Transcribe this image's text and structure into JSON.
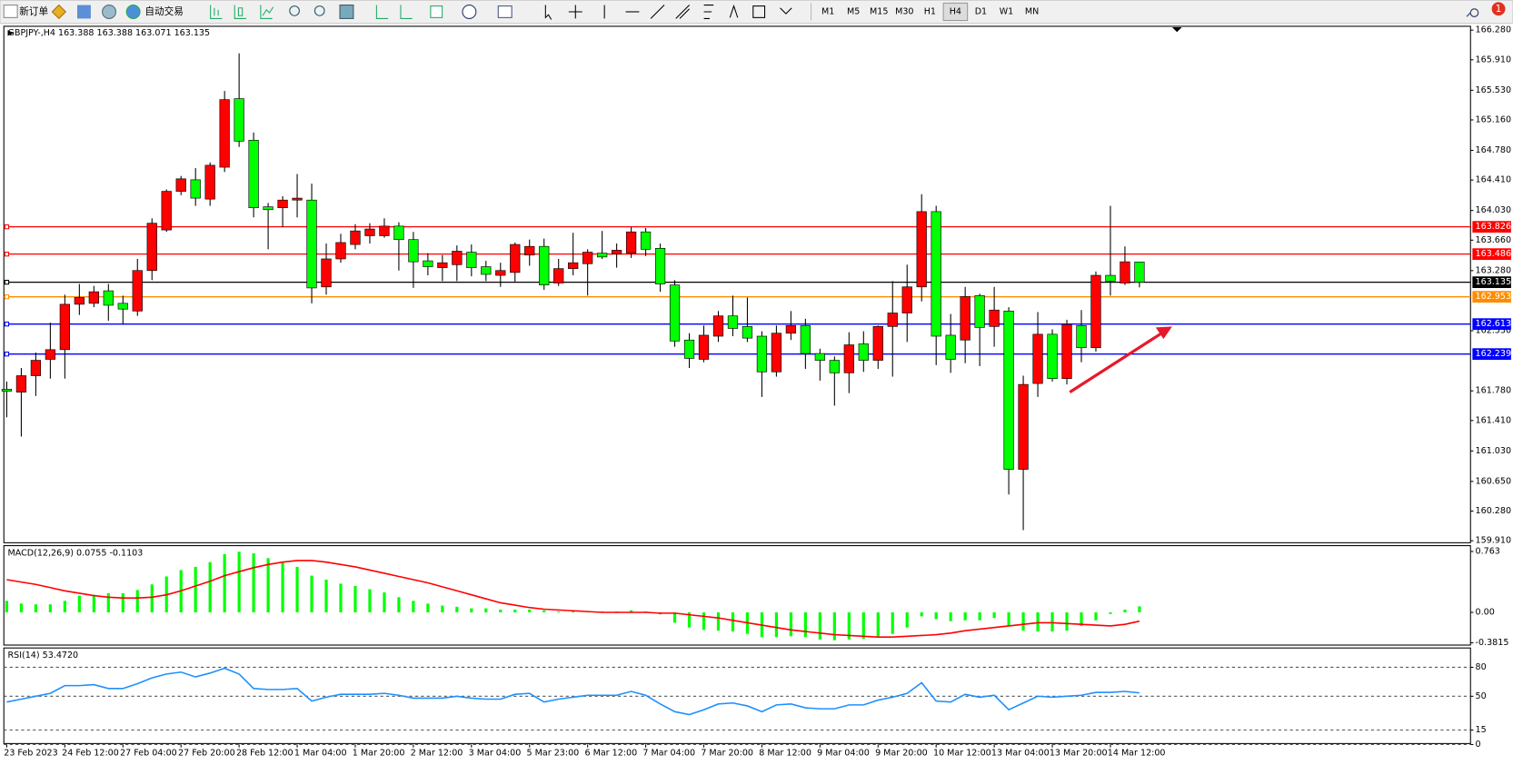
{
  "toolbar": {
    "new_order": "新订单",
    "auto_trading": "自动交易",
    "timeframes": [
      "M1",
      "M5",
      "M15",
      "M30",
      "H1",
      "H4",
      "D1",
      "W1",
      "MN"
    ],
    "active_timeframe": "H4",
    "badge": "1"
  },
  "chart_data": [
    {
      "type": "candlestick",
      "title": "GBPJPY-,H4  163.388 163.388 163.071 163.135",
      "categories": [
        "23 Feb 2023",
        null,
        null,
        null,
        "24 Feb 12:00",
        null,
        null,
        null,
        "27 Feb 04:00",
        null,
        null,
        null,
        "27 Feb 20:00",
        null,
        null,
        null,
        "28 Feb 12:00",
        null,
        null,
        null,
        "1 Mar 04:00",
        null,
        null,
        null,
        "1 Mar 20:00",
        null,
        null,
        null,
        "2 Mar 12:00",
        null,
        null,
        null,
        "3 Mar 04:00",
        null,
        null,
        null,
        "5 Mar 23:00",
        null,
        null,
        null,
        "6 Mar 12:00",
        null,
        null,
        null,
        "7 Mar 04:00",
        null,
        null,
        null,
        "7 Mar 20:00",
        null,
        null,
        null,
        "8 Mar 12:00",
        null,
        null,
        null,
        "9 Mar 04:00",
        null,
        null,
        null,
        "9 Mar 20:00",
        null,
        null,
        null,
        "10 Mar 12:00",
        null,
        null,
        null,
        "13 Mar 04:00",
        null,
        null,
        null,
        "13 Mar 20:00",
        null,
        null,
        null,
        "14 Mar 12:00",
        null,
        null
      ],
      "open": [
        161.8,
        161.764,
        161.969,
        162.173,
        162.294,
        162.86,
        162.872,
        163.028,
        162.872,
        162.776,
        163.281,
        163.787,
        164.269,
        164.413,
        164.172,
        164.57,
        165.425,
        164.907,
        164.076,
        164.064,
        164.16,
        164.16,
        163.077,
        163.426,
        163.606,
        163.715,
        163.715,
        163.835,
        163.667,
        163.402,
        163.317,
        163.354,
        163.51,
        163.329,
        163.221,
        163.257,
        163.474,
        163.582,
        163.125,
        163.305,
        163.366,
        163.498,
        163.486,
        163.498,
        163.763,
        163.558,
        163.101,
        162.414,
        162.173,
        162.462,
        162.715,
        162.583,
        162.462,
        162.017,
        162.499,
        162.595,
        162.246,
        162.161,
        162.005,
        162.366,
        162.161,
        162.583,
        162.751,
        163.077,
        164.016,
        162.474,
        162.414,
        162.968,
        162.583,
        162.776,
        160.801,
        161.872,
        162.486,
        161.933,
        162.595,
        162.318,
        163.221,
        163.125,
        163.388
      ],
      "high": [
        161.896,
        162.065,
        162.258,
        162.631,
        162.98,
        163.113,
        163.089,
        163.113,
        162.968,
        163.426,
        163.932,
        164.293,
        164.461,
        164.558,
        164.63,
        165.521,
        165.991,
        165.003,
        164.124,
        164.209,
        164.485,
        164.365,
        163.618,
        163.739,
        163.859,
        163.871,
        163.932,
        163.883,
        163.763,
        163.498,
        163.474,
        163.594,
        163.606,
        163.402,
        163.378,
        163.63,
        163.667,
        163.679,
        163.426,
        163.751,
        163.546,
        163.775,
        163.618,
        163.823,
        163.811,
        163.618,
        163.161,
        162.499,
        162.595,
        162.776,
        162.968,
        162.944,
        162.523,
        162.595,
        162.776,
        162.679,
        162.306,
        162.21,
        162.511,
        162.523,
        162.595,
        163.149,
        163.354,
        164.233,
        164.088,
        162.739,
        163.077,
        162.992,
        163.077,
        162.824,
        161.969,
        162.763,
        162.547,
        162.667,
        162.788,
        163.269,
        164.088,
        163.582,
        163.388
      ],
      "low": [
        161.451,
        161.21,
        161.716,
        161.933,
        161.933,
        162.727,
        162.824,
        162.655,
        162.607,
        162.715,
        163.161,
        163.763,
        164.221,
        164.088,
        164.088,
        164.51,
        164.823,
        163.944,
        163.546,
        163.823,
        163.944,
        162.872,
        162.98,
        163.378,
        163.546,
        163.618,
        163.691,
        163.281,
        163.064,
        163.221,
        163.149,
        163.149,
        163.209,
        163.149,
        163.077,
        163.137,
        163.341,
        163.04,
        163.089,
        163.221,
        162.968,
        163.426,
        163.317,
        163.438,
        163.462,
        163.016,
        162.33,
        162.065,
        162.137,
        162.39,
        162.462,
        162.39,
        161.704,
        161.957,
        162.414,
        162.053,
        161.908,
        161.595,
        161.752,
        162.017,
        162.053,
        161.957,
        162.39,
        162.896,
        162.101,
        162.005,
        162.125,
        162.089,
        162.33,
        160.487,
        160.042,
        161.704,
        161.896,
        161.86,
        162.137,
        162.27,
        162.968,
        163.101,
        163.071
      ],
      "close": [
        161.776,
        161.969,
        162.161,
        162.294,
        162.86,
        162.944,
        163.016,
        162.848,
        162.8,
        163.281,
        163.871,
        164.269,
        164.425,
        164.184,
        164.594,
        165.413,
        164.895,
        164.064,
        164.04,
        164.16,
        164.184,
        163.064,
        163.426,
        163.63,
        163.775,
        163.799,
        163.835,
        163.667,
        163.39,
        163.329,
        163.378,
        163.522,
        163.317,
        163.233,
        163.281,
        163.606,
        163.582,
        163.101,
        163.305,
        163.378,
        163.51,
        163.45,
        163.534,
        163.763,
        163.546,
        163.113,
        162.402,
        162.185,
        162.474,
        162.715,
        162.559,
        162.438,
        162.017,
        162.499,
        162.595,
        162.246,
        162.161,
        162.005,
        162.354,
        162.161,
        162.583,
        162.751,
        163.077,
        164.016,
        162.462,
        162.173,
        162.956,
        162.571,
        162.788,
        160.801,
        161.86,
        162.486,
        161.933,
        162.607,
        162.318,
        163.221,
        163.149,
        163.39,
        163.135
      ],
      "up_color": "#ff0000",
      "down_color": "#00ff00",
      "ylim": [
        159.885,
        166.328
      ],
      "yticks": [
        {
          "value": 166.28,
          "label": "166.280"
        },
        {
          "value": 165.91,
          "label": "165.910"
        },
        {
          "value": 165.53,
          "label": "165.530"
        },
        {
          "value": 165.16,
          "label": "165.160"
        },
        {
          "value": 164.78,
          "label": "164.780"
        },
        {
          "value": 164.41,
          "label": "164.410"
        },
        {
          "value": 164.03,
          "label": "164.030"
        },
        {
          "value": 163.66,
          "label": "163.660"
        },
        {
          "value": 163.28,
          "label": "163.280"
        },
        {
          "value": 162.53,
          "label": "162.530"
        },
        {
          "value": 161.78,
          "label": "161.780"
        },
        {
          "value": 161.41,
          "label": "161.410"
        },
        {
          "value": 161.03,
          "label": "161.030"
        },
        {
          "value": 160.65,
          "label": "160.650"
        },
        {
          "value": 160.28,
          "label": "160.280"
        },
        {
          "value": 159.91,
          "label": "159.910"
        }
      ],
      "levels": [
        {
          "value": 163.826,
          "color": "#ff0000"
        },
        {
          "value": 163.486,
          "color": "#ff0000"
        },
        {
          "value": 163.135,
          "color": "#000000"
        },
        {
          "value": 162.953,
          "color": "#ff8c00"
        },
        {
          "value": 162.613,
          "color": "#0000ff"
        },
        {
          "value": 162.239,
          "color": "#0000ff"
        }
      ]
    },
    {
      "type": "macd",
      "title": "MACD(12,26,9) 0.0755 -0.1103",
      "series": [
        {
          "style": "bar",
          "color": "#00ff00",
          "values": [
            0.145,
            0.11,
            0.1,
            0.1,
            0.145,
            0.21,
            0.22,
            0.24,
            0.24,
            0.28,
            0.35,
            0.45,
            0.53,
            0.57,
            0.63,
            0.73,
            0.76,
            0.74,
            0.68,
            0.63,
            0.57,
            0.46,
            0.41,
            0.36,
            0.33,
            0.29,
            0.25,
            0.19,
            0.145,
            0.11,
            0.085,
            0.07,
            0.05,
            0.05,
            0.035,
            0.035,
            0.035,
            0.025,
            0.012,
            0.012,
            0.012,
            0.012,
            0.012,
            0.025,
            0.012,
            -0.025,
            -0.13,
            -0.19,
            -0.22,
            -0.23,
            -0.24,
            -0.27,
            -0.31,
            -0.31,
            -0.3,
            -0.31,
            -0.34,
            -0.35,
            -0.34,
            -0.33,
            -0.3,
            -0.27,
            -0.19,
            -0.05,
            -0.085,
            -0.11,
            -0.1,
            -0.1,
            -0.07,
            -0.17,
            -0.23,
            -0.24,
            -0.24,
            -0.23,
            -0.17,
            -0.1,
            -0.02,
            0.035,
            0.0755
          ]
        },
        {
          "style": "line",
          "color": "#ff0000",
          "values": [
            0.41,
            0.38,
            0.35,
            0.31,
            0.27,
            0.24,
            0.21,
            0.19,
            0.18,
            0.18,
            0.19,
            0.22,
            0.27,
            0.33,
            0.39,
            0.46,
            0.51,
            0.56,
            0.6,
            0.63,
            0.65,
            0.65,
            0.63,
            0.6,
            0.57,
            0.53,
            0.49,
            0.45,
            0.41,
            0.37,
            0.32,
            0.27,
            0.22,
            0.17,
            0.12,
            0.09,
            0.06,
            0.04,
            0.03,
            0.02,
            0.01,
            0,
            0,
            0,
            0,
            -0.01,
            -0.01,
            -0.03,
            -0.05,
            -0.07,
            -0.1,
            -0.13,
            -0.16,
            -0.19,
            -0.22,
            -0.24,
            -0.26,
            -0.28,
            -0.29,
            -0.3,
            -0.31,
            -0.31,
            -0.3,
            -0.29,
            -0.28,
            -0.26,
            -0.23,
            -0.21,
            -0.19,
            -0.17,
            -0.15,
            -0.13,
            -0.13,
            -0.14,
            -0.15,
            -0.16,
            -0.17,
            -0.15,
            -0.1103
          ]
        }
      ],
      "ylim": [
        -0.41,
        0.836
      ],
      "yticks": [
        0.763,
        {
          "value": 0,
          "label": "0.00"
        },
        -0.3815
      ]
    },
    {
      "type": "line",
      "title": "RSI(14) 53.4720",
      "color": "#1e90ff",
      "values": [
        44,
        47,
        50,
        53,
        61,
        61,
        62,
        58,
        58,
        63,
        69,
        73,
        75,
        70,
        74,
        79,
        73,
        58,
        57,
        57,
        58,
        45,
        49,
        52,
        52,
        52,
        53,
        51,
        48,
        48,
        48,
        50,
        48,
        47,
        47,
        52,
        53,
        44,
        47,
        49,
        51,
        51,
        51,
        55,
        51,
        42,
        34,
        31,
        36,
        42,
        43,
        40,
        34,
        41,
        42,
        38,
        37,
        37,
        41,
        41,
        46,
        49,
        53,
        64,
        45,
        44,
        52,
        49,
        51,
        36,
        43,
        50,
        49,
        50,
        51,
        54,
        54,
        55,
        53.472
      ],
      "ylim": [
        0,
        100
      ],
      "yticks": [
        80,
        50,
        15,
        0
      ],
      "grid": "dashed"
    }
  ]
}
